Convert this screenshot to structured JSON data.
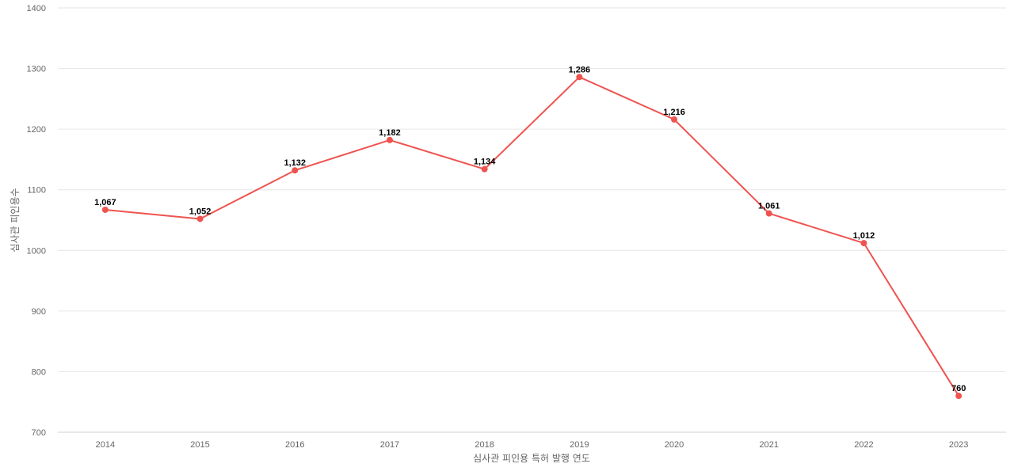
{
  "chart_data": {
    "type": "line",
    "title": "",
    "xlabel": "심사관 피인용 특허 발행 연도",
    "ylabel": "심사관 피인용수",
    "categories": [
      "2014",
      "2015",
      "2016",
      "2017",
      "2018",
      "2019",
      "2020",
      "2021",
      "2022",
      "2023"
    ],
    "series": [
      {
        "values": [
          1067,
          1052,
          1132,
          1182,
          1134,
          1286,
          1216,
          1061,
          1012,
          760
        ],
        "data_labels": [
          "1,067",
          "1,052",
          "1,132",
          "1,182",
          "1,134",
          "1,286",
          "1,216",
          "1,061",
          "1,012",
          "760"
        ],
        "color": "#ef5350"
      }
    ],
    "ylim": [
      700,
      1400
    ],
    "yticks": [
      "700",
      "800",
      "900",
      "1000",
      "1100",
      "1200",
      "1300",
      "1400"
    ],
    "grid": true,
    "legend": "none"
  }
}
